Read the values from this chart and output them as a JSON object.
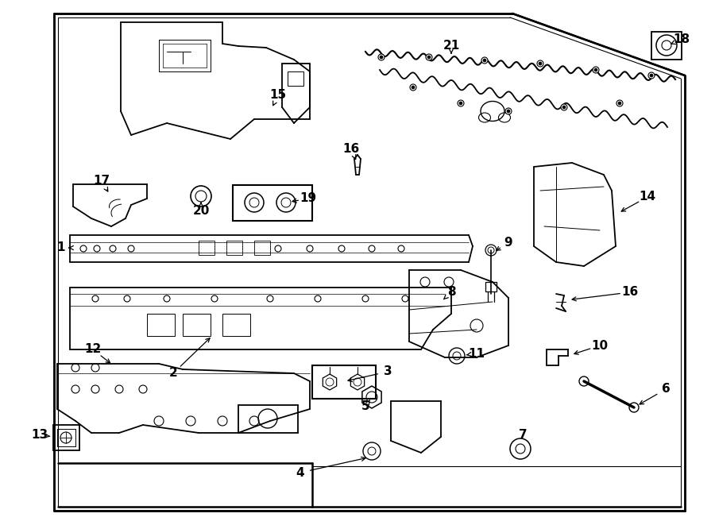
{
  "bg_color": "#ffffff",
  "line_color": "#000000",
  "lw_main": 1.3,
  "lw_thin": 0.7,
  "label_fs": 11
}
